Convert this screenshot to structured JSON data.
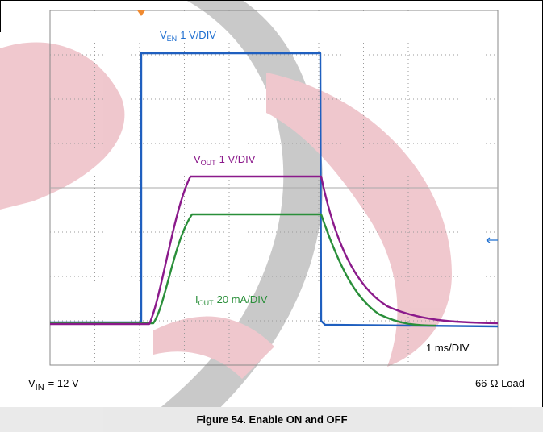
{
  "figure": {
    "traces": {
      "ven": {
        "symbol": "V",
        "subscript": "EN",
        "scale": "1 V/DIV"
      },
      "vout": {
        "symbol": "V",
        "subscript": "OUT",
        "scale": "1 V/DIV"
      },
      "iout": {
        "symbol": "I",
        "subscript": "OUT",
        "scale": "20 mA/DIV"
      }
    },
    "timebase": "1 ms/DIV",
    "conditions": {
      "vin": {
        "symbol": "V",
        "subscript": "IN",
        "value": "= 12 V"
      },
      "load": "66-Ω Load"
    },
    "caption": "Figure 54. Enable ON and OFF"
  }
}
